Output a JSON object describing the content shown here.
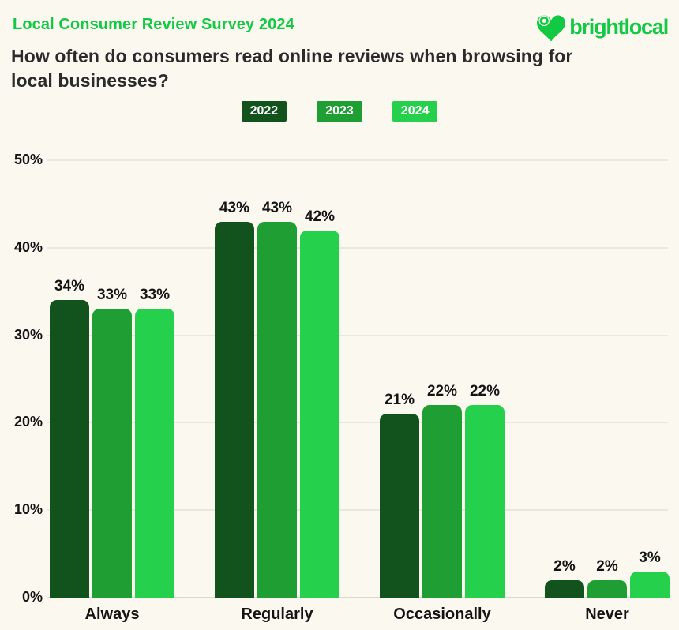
{
  "page": {
    "background": "#FAF8EF"
  },
  "header": {
    "eyebrow": "Local Consumer Review Survey 2024",
    "title_line1": "How often do consumers read online reviews when browsing for",
    "title_line2": "local businesses?",
    "brand": {
      "name": "brightlocal",
      "logo_icon": "heart-pin-icon",
      "accent_color": "#12C943"
    }
  },
  "chart_data": {
    "type": "bar",
    "title": "How often do consumers read online reviews when browsing for local businesses?",
    "categories": [
      "Always",
      "Regularly",
      "Occasionally",
      "Never"
    ],
    "series": [
      {
        "name": "2022",
        "color": "#12521D",
        "values": [
          34,
          43,
          21,
          2
        ]
      },
      {
        "name": "2023",
        "color": "#1F9E33",
        "values": [
          33,
          43,
          22,
          2
        ]
      },
      {
        "name": "2024",
        "color": "#24D04C",
        "values": [
          33,
          42,
          22,
          3
        ]
      }
    ],
    "xlabel": "",
    "ylabel": "",
    "ylim": [
      0,
      50
    ],
    "y_ticks": [
      "50%",
      "40%",
      "30%",
      "20%",
      "10%",
      "0%"
    ],
    "grid": true,
    "legend_position": "top-center",
    "value_label_format": "{v}%"
  }
}
